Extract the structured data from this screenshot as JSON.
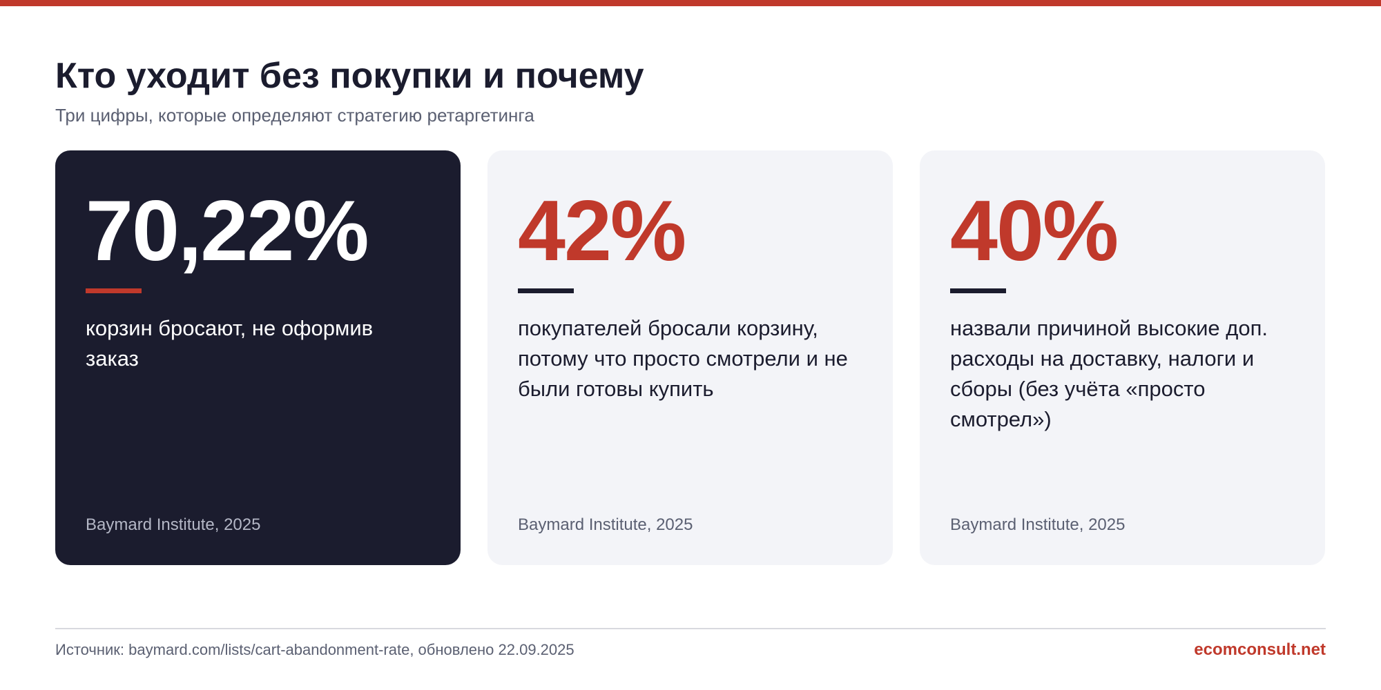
{
  "header": {
    "title": "Кто уходит без покупки и почему",
    "subtitle": "Три цифры, которые определяют стратегию ретаргетинга"
  },
  "cards": [
    {
      "variant": "dark",
      "value": "70,22%",
      "description": "корзин бросают, не оформив заказ",
      "source": "Baymard Institute, 2025"
    },
    {
      "variant": "light",
      "value": "42%",
      "description": "покупателей бросали корзину, потому что просто смотрели и не были готовы купить",
      "source": "Baymard Institute, 2025"
    },
    {
      "variant": "light",
      "value": "40%",
      "description": "назвали причиной высокие доп. расходы на доставку, налоги и сборы (без учёта «просто смотрел»)",
      "source": "Baymard Institute, 2025"
    }
  ],
  "footer": {
    "source": "Источник: baymard.com/lists/cart-abandonment-rate, обновлено 22.09.2025",
    "brand": "ecomconsult.net"
  },
  "colors": {
    "accent": "#c0392b",
    "dark": "#1b1c2e",
    "light_card": "#f3f4f8",
    "muted_text": "#5b6072"
  }
}
